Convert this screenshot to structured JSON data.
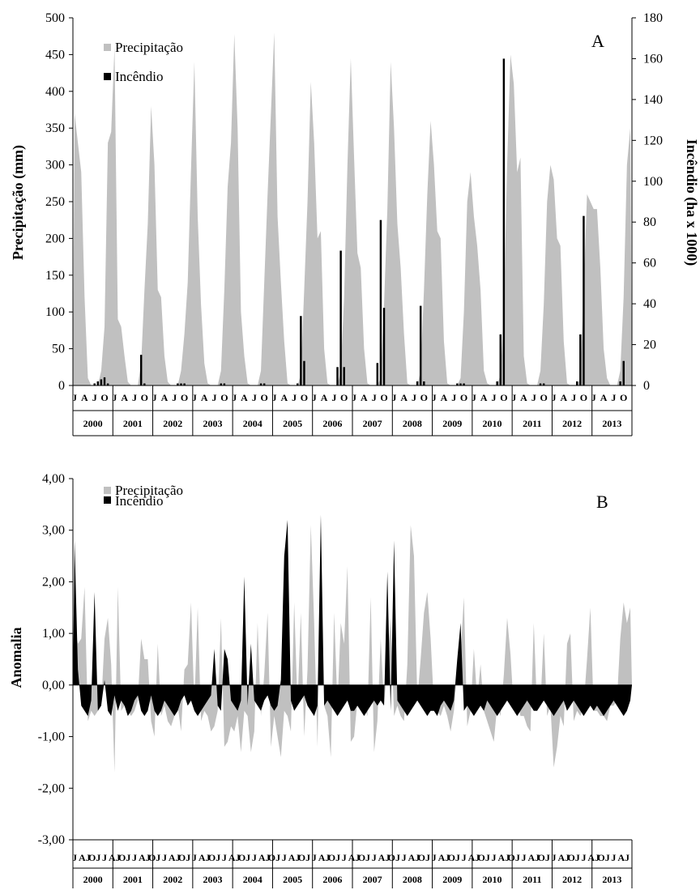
{
  "charts": [
    {
      "panel": "A",
      "legend": {
        "series1": "Precipitação",
        "series2": "Incêndio"
      }
    },
    {
      "panel": "B",
      "legend": {
        "series1": "Precipitação",
        "series2": "Incêndio"
      }
    }
  ],
  "chart_data": [
    {
      "type": "area+bar",
      "panel_letter": "A",
      "ylabel": "Precipitação (mm)",
      "y2label": "Incêndio (ha x 1000)",
      "ylim": [
        0,
        500
      ],
      "y2lim": [
        0,
        180
      ],
      "yticks": [
        "0",
        "50",
        "100",
        "150",
        "200",
        "250",
        "300",
        "350",
        "400",
        "450",
        "500"
      ],
      "y2ticks": [
        "0",
        "20",
        "40",
        "60",
        "80",
        "100",
        "120",
        "140",
        "160",
        "180"
      ],
      "month_tick_labels": [
        "J",
        "A",
        "J",
        "O"
      ],
      "years": [
        "2000",
        "2001",
        "2002",
        "2003",
        "2004",
        "2005",
        "2006",
        "2007",
        "2008",
        "2009",
        "2010",
        "2011",
        "2012",
        "2013"
      ],
      "grid": false,
      "legend_position": "top-left",
      "series": [
        {
          "name": "Precipitação",
          "axis": "left",
          "color": "#c0c0c0",
          "values": [
            370,
            330,
            290,
            120,
            10,
            0,
            0,
            0,
            20,
            80,
            330,
            345,
            460,
            90,
            80,
            40,
            5,
            0,
            0,
            0,
            30,
            130,
            220,
            380,
            300,
            130,
            120,
            40,
            5,
            0,
            0,
            0,
            20,
            70,
            140,
            295,
            440,
            230,
            110,
            30,
            3,
            0,
            0,
            0,
            20,
            130,
            270,
            330,
            478,
            350,
            100,
            40,
            3,
            0,
            0,
            0,
            20,
            140,
            260,
            370,
            480,
            230,
            140,
            60,
            3,
            0,
            0,
            0,
            15,
            130,
            250,
            413,
            330,
            200,
            210,
            50,
            3,
            0,
            0,
            0,
            20,
            120,
            300,
            445,
            310,
            180,
            160,
            50,
            3,
            0,
            0,
            0,
            10,
            110,
            240,
            440,
            350,
            220,
            160,
            70,
            3,
            0,
            0,
            0,
            20,
            130,
            260,
            360,
            300,
            210,
            200,
            60,
            3,
            0,
            0,
            0,
            10,
            100,
            250,
            290,
            230,
            190,
            130,
            20,
            3,
            0,
            0,
            0,
            15,
            100,
            300,
            450,
            410,
            290,
            310,
            40,
            3,
            0,
            0,
            0,
            20,
            110,
            250,
            300,
            280,
            200,
            190,
            60,
            3,
            0,
            0,
            0,
            10,
            130,
            260,
            250,
            240,
            240,
            160,
            50,
            10,
            0,
            0,
            0,
            20,
            120,
            300,
            350
          ]
        },
        {
          "name": "Incêndio",
          "axis": "right",
          "color": "#000000",
          "values": [
            0,
            0,
            0,
            0,
            0,
            0,
            1,
            2,
            3,
            4,
            1,
            0,
            0,
            0,
            0,
            0,
            0,
            0,
            0,
            0,
            15,
            1,
            0,
            0,
            0,
            0,
            0,
            0,
            0,
            0,
            0,
            1,
            1,
            1,
            0,
            0,
            0,
            0,
            0,
            0,
            0,
            0,
            0,
            0,
            1,
            1,
            0,
            0,
            0,
            0,
            0,
            0,
            0,
            0,
            0,
            0,
            1,
            1,
            0,
            0,
            0,
            0,
            0,
            0,
            0,
            0,
            0,
            1,
            34,
            12,
            0,
            0,
            0,
            0,
            0,
            0,
            0,
            0,
            0,
            9,
            66,
            9,
            0,
            0,
            0,
            0,
            0,
            0,
            0,
            0,
            0,
            11,
            81,
            38,
            0,
            0,
            0,
            0,
            0,
            0,
            0,
            0,
            0,
            2,
            39,
            2,
            0,
            0,
            0,
            0,
            0,
            0,
            0,
            0,
            0,
            1,
            1,
            1,
            0,
            0,
            0,
            0,
            0,
            0,
            0,
            0,
            0,
            2,
            25,
            160,
            0,
            0,
            0,
            0,
            0,
            0,
            0,
            0,
            0,
            0,
            1,
            1,
            0,
            0,
            0,
            0,
            0,
            0,
            0,
            0,
            0,
            2,
            25,
            83,
            0,
            0,
            0,
            0,
            0,
            0,
            0,
            0,
            0,
            0,
            2,
            12,
            0,
            0
          ]
        }
      ]
    },
    {
      "type": "area",
      "panel_letter": "B",
      "ylabel": "Anomalia",
      "ylim": [
        -3,
        4
      ],
      "yticks": [
        "4,00",
        "3,00",
        "2,00",
        "1,00",
        "0,00",
        "-1,00",
        "-2,00",
        "-3,00"
      ],
      "month_tick_labels": [
        "J",
        "AJ",
        "OJ"
      ],
      "years": [
        "2000",
        "2001",
        "2002",
        "2003",
        "2004",
        "2005",
        "2006",
        "2007",
        "2008",
        "2009",
        "2010",
        "2011",
        "2012",
        "2013"
      ],
      "grid": false,
      "legend_position": "top-left",
      "series": [
        {
          "name": "Precipitação",
          "color": "#c0c0c0",
          "values": [
            1.1,
            0.8,
            0.9,
            1.9,
            -0.7,
            -0.5,
            -0.6,
            -0.5,
            -0.4,
            0.9,
            1.3,
            0.4,
            -1.7,
            1.9,
            -0.5,
            -0.4,
            -0.5,
            -0.6,
            -0.5,
            -0.3,
            0.9,
            0.5,
            0.5,
            -0.7,
            -1.0,
            0.8,
            -0.6,
            -0.4,
            -0.7,
            -0.8,
            -0.6,
            -0.4,
            -0.9,
            0.3,
            0.4,
            1.6,
            -0.4,
            1.5,
            -0.7,
            -0.5,
            -0.6,
            -0.9,
            -0.8,
            -0.5,
            1.3,
            -1.2,
            -1.1,
            -0.8,
            -0.9,
            -0.6,
            -1.3,
            -0.5,
            -0.6,
            -1.3,
            -0.9,
            1.2,
            -0.6,
            0.2,
            1.4,
            -1.2,
            -0.6,
            -1.0,
            -1.4,
            -0.5,
            -0.6,
            -0.9,
            1.6,
            -0.4,
            1.4,
            -1.0,
            0.3,
            3.1,
            1.2,
            -1.2,
            2.3,
            -0.4,
            -0.6,
            -1.4,
            1.4,
            -0.4,
            1.2,
            0.8,
            2.3,
            -1.1,
            -1.0,
            -0.3,
            -0.5,
            -0.4,
            -0.6,
            1.7,
            -1.3,
            -0.7,
            0.9,
            -0.4,
            0.4,
            1.3,
            -0.6,
            -0.4,
            -0.6,
            -0.7,
            0.4,
            3.1,
            2.5,
            -0.3,
            0.5,
            1.4,
            1.8,
            0.9,
            -0.4,
            -0.5,
            -0.6,
            -0.4,
            -0.6,
            -0.9,
            -0.5,
            0.3,
            0.6,
            1.7,
            -0.8,
            -0.5,
            0.7,
            -0.3,
            0.4,
            -0.5,
            -0.7,
            -0.9,
            -1.1,
            -0.4,
            -0.6,
            0.2,
            1.3,
            0.6,
            -0.5,
            -0.3,
            -0.6,
            -0.6,
            -0.8,
            -0.9,
            1.2,
            -0.5,
            -0.4,
            1.0,
            -0.6,
            -0.4,
            -1.6,
            -1.2,
            -0.6,
            -0.8,
            0.8,
            1.0,
            -0.7,
            -0.5,
            -0.6,
            -0.4,
            0.5,
            1.5,
            -0.5,
            -0.5,
            -0.6,
            -0.6,
            -0.7,
            -0.4,
            -0.4,
            -0.3,
            0.9,
            1.6,
            1.2,
            1.5
          ]
        },
        {
          "name": "Incêndio",
          "color": "#000000",
          "values": [
            2.8,
            0.3,
            -0.4,
            -0.5,
            -0.6,
            -0.3,
            1.8,
            -0.5,
            -0.4,
            0.1,
            -0.5,
            -0.6,
            -0.2,
            -0.5,
            -0.3,
            -0.4,
            -0.6,
            -0.5,
            -0.3,
            -0.2,
            -0.5,
            -0.6,
            -0.5,
            -0.2,
            -0.5,
            -0.6,
            -0.5,
            -0.3,
            -0.4,
            -0.5,
            -0.6,
            -0.5,
            -0.3,
            -0.2,
            -0.4,
            -0.3,
            -0.5,
            -0.6,
            -0.5,
            -0.4,
            -0.3,
            -0.2,
            0.7,
            -0.4,
            -0.5,
            0.7,
            0.5,
            -0.3,
            -0.4,
            -0.5,
            -0.3,
            2.1,
            -0.4,
            0.8,
            -0.3,
            -0.4,
            -0.5,
            -0.3,
            -0.2,
            -0.4,
            -0.5,
            -0.4,
            0.1,
            2.5,
            3.2,
            -0.3,
            -0.5,
            -0.4,
            -0.3,
            -0.2,
            -0.4,
            -0.5,
            -0.6,
            -0.4,
            3.3,
            -0.4,
            -0.3,
            -0.4,
            -0.5,
            -0.6,
            -0.5,
            -0.4,
            -0.3,
            -0.5,
            -0.5,
            -0.4,
            -0.5,
            -0.6,
            -0.5,
            -0.4,
            -0.3,
            -0.4,
            -0.3,
            -0.4,
            2.2,
            -0.5,
            2.8,
            -0.3,
            -0.4,
            -0.5,
            -0.6,
            -0.5,
            -0.4,
            -0.3,
            -0.4,
            -0.5,
            -0.6,
            -0.5,
            -0.5,
            -0.6,
            -0.4,
            -0.3,
            -0.4,
            -0.5,
            -0.3,
            0.5,
            1.2,
            -0.5,
            -0.4,
            -0.5,
            -0.6,
            -0.5,
            -0.4,
            -0.5,
            -0.3,
            -0.4,
            -0.5,
            -0.6,
            -0.5,
            -0.4,
            -0.3,
            -0.4,
            -0.5,
            -0.6,
            -0.5,
            -0.4,
            -0.3,
            -0.4,
            -0.5,
            -0.5,
            -0.4,
            -0.3,
            -0.4,
            -0.5,
            -0.6,
            -0.5,
            -0.4,
            -0.3,
            -0.5,
            -0.4,
            -0.3,
            -0.4,
            -0.5,
            -0.6,
            -0.5,
            -0.4,
            -0.5,
            -0.4,
            -0.5,
            -0.6,
            -0.5,
            -0.4,
            -0.3,
            -0.4,
            -0.5,
            -0.6,
            -0.5,
            -0.3
          ]
        }
      ]
    }
  ]
}
